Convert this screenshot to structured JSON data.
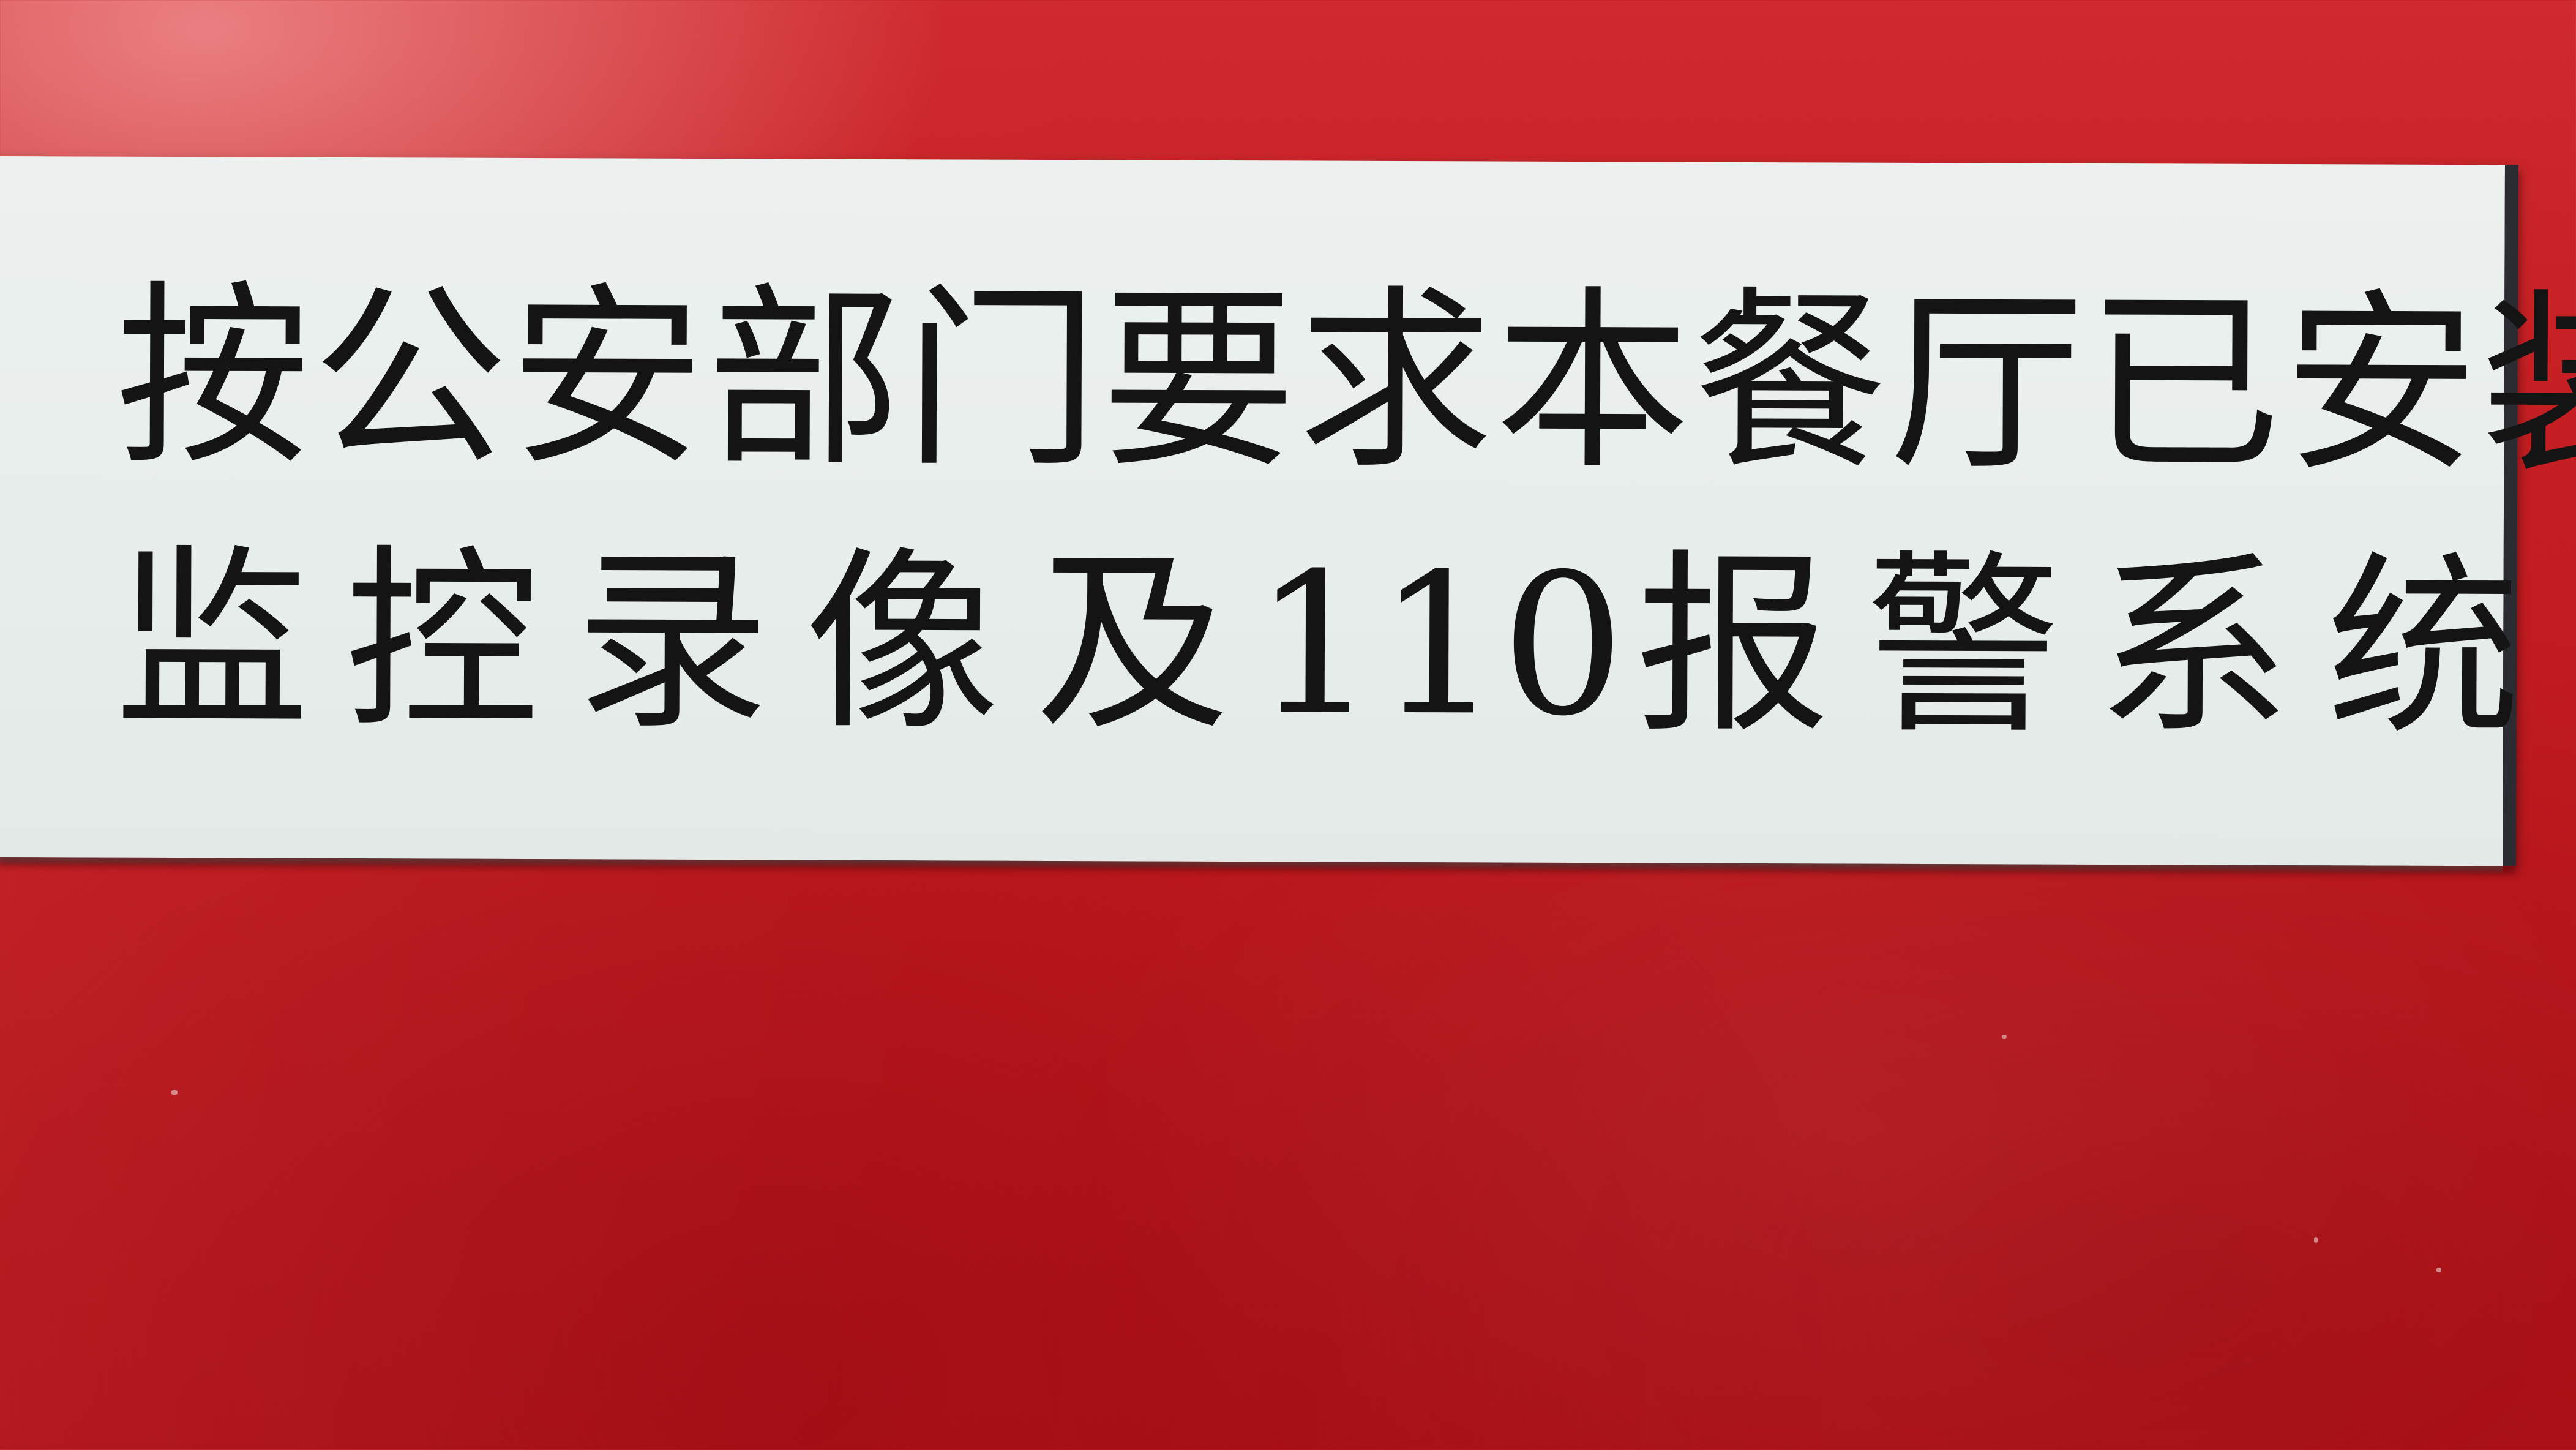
{
  "sign": {
    "line1": "按公安部门要求本餐厅已安装",
    "line2_pre": "监控录像及",
    "line2_num": "110",
    "line2_post": "报警系统"
  },
  "colors": {
    "wall": "#c41e22",
    "sign_face": "#eaefed",
    "sign_text": "#141414",
    "sign_edge": "#2a2c31"
  }
}
